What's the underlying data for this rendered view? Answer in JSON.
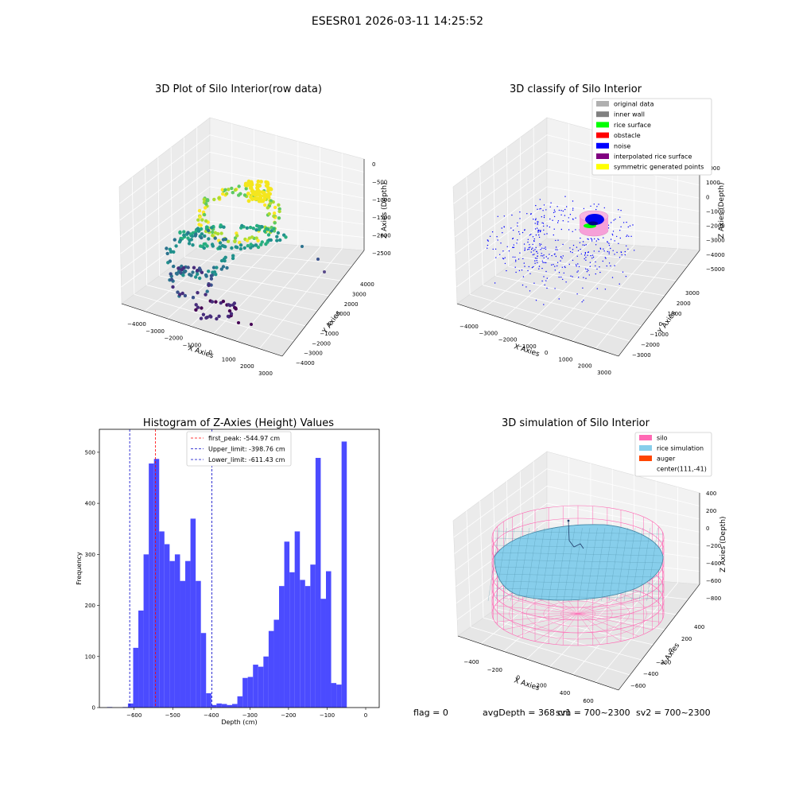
{
  "suptitle": "ESESR01 2026-03-11 14:25:52",
  "status": {
    "flag": "flag = 0",
    "avg_depth": "avgDepth = 368 cm",
    "sv1": "sv1 = 700~2300",
    "sv2": "sv2 = 700~2300"
  },
  "chart_data": [
    {
      "type": "scatter3d",
      "title": "3D Plot of Silo Interior(row data)",
      "xlabel": "X Axies",
      "ylabel": "Y Axies",
      "zlabel": "Z Axies (Depth)",
      "x_ticks": [
        "−4000",
        "−3000",
        "−2000",
        "−1000",
        "0",
        "1000",
        "2000",
        "3000"
      ],
      "y_ticks": [
        "−4000",
        "−3000",
        "−2000",
        "−1000",
        "0",
        "1000",
        "2000",
        "3000",
        "4000"
      ],
      "z_ticks": [
        "−2500",
        "−2000",
        "−1500",
        "−1000",
        "−500",
        "0"
      ],
      "xlim": [
        -4500,
        3000
      ],
      "ylim": [
        -4500,
        4500
      ],
      "zlim": [
        -2800,
        100
      ],
      "colormap": "viridis by depth"
    },
    {
      "type": "scatter3d",
      "title": "3D classify of Silo Interior",
      "xlabel": "X Axies",
      "ylabel": "Y Axies",
      "zlabel": "Z Axies (Depth)",
      "x_ticks": [
        "−4000",
        "−3000",
        "−2000",
        "−1000",
        "0",
        "1000",
        "2000",
        "3000"
      ],
      "y_ticks": [
        "−3000",
        "−2000",
        "−1000",
        "0",
        "1000",
        "2000",
        "3000"
      ],
      "z_ticks": [
        "−5000",
        "−4000",
        "−3000",
        "−2000",
        "−1000",
        "0",
        "1000",
        "2000"
      ],
      "xlim": [
        -4500,
        3000
      ],
      "ylim": [
        -3500,
        3500
      ],
      "zlim": [
        -5000,
        2000
      ],
      "legend_placement": "top-right",
      "legend": [
        {
          "label": "original data",
          "color": "#b0b0b0"
        },
        {
          "label": "inner wall",
          "color": "#808080"
        },
        {
          "label": "rice surface",
          "color": "#00ff00"
        },
        {
          "label": "obstacle",
          "color": "#ff0000"
        },
        {
          "label": "noise",
          "color": "#0000ff"
        },
        {
          "label": "interpolated rice surface",
          "color": "#800080"
        },
        {
          "label": "symmetric generated points",
          "color": "#ffff00"
        }
      ]
    },
    {
      "type": "bar",
      "title": "Histogram of Z-Axies (Height) Values",
      "xlabel": "Depth (cm)",
      "ylabel": "Frequency",
      "xlim": [
        -690,
        35
      ],
      "ylim": [
        0,
        545
      ],
      "x_ticks": [
        "−600",
        "−500",
        "−400",
        "−300",
        "−200",
        "−100",
        "0"
      ],
      "x_tick_values": [
        -600,
        -500,
        -400,
        -300,
        -200,
        -100,
        0
      ],
      "y_ticks": [
        "0",
        "100",
        "200",
        "300",
        "400",
        "500"
      ],
      "y_tick_values": [
        0,
        100,
        200,
        300,
        400,
        500
      ],
      "bar_color": "#4b4bff",
      "bins": {
        "start": -670,
        "width": 13.5,
        "values": [
          1,
          0,
          0,
          1,
          8,
          117,
          190,
          300,
          478,
          487,
          345,
          320,
          287,
          300,
          248,
          287,
          370,
          248,
          146,
          28,
          5,
          8,
          7,
          5,
          7,
          22,
          58,
          60,
          84,
          80,
          100,
          150,
          172,
          238,
          325,
          265,
          345,
          250,
          238,
          280,
          489,
          213,
          267,
          48,
          45,
          521
        ]
      },
      "lines": [
        {
          "label": "first_peak: -544.97 cm",
          "x": -544.97,
          "color": "#ff0000"
        },
        {
          "label": "Upper_limit: -398.76 cm",
          "x": -398.76,
          "color": "#0000c8"
        },
        {
          "label": "Lower_limit: -611.43 cm",
          "x": -611.43,
          "color": "#0000c8"
        }
      ],
      "legend_placement": "top-center"
    },
    {
      "type": "surface3d",
      "title": "3D simulation of Silo Interior",
      "xlabel": "X Axies",
      "ylabel": "Y Axies",
      "zlabel": "Z Axies (Depth)",
      "x_ticks": [
        "−400",
        "−200",
        "0",
        "200",
        "400",
        "600"
      ],
      "y_ticks": [
        "−600",
        "−400",
        "−200",
        "0",
        "200",
        "400"
      ],
      "z_ticks": [
        "−800",
        "−600",
        "−400",
        "−200",
        "0",
        "200",
        "400"
      ],
      "xlim": [
        -550,
        700
      ],
      "ylim": [
        -700,
        500
      ],
      "zlim": [
        -900,
        400
      ],
      "legend_placement": "top-right",
      "legend": [
        {
          "label": "silo",
          "color": "#ff69b4"
        },
        {
          "label": "rice simulation",
          "color": "#87ceeb"
        },
        {
          "label": "auger",
          "color": "#ff4500"
        },
        {
          "label": "center(111,-41)",
          "color": ""
        }
      ]
    }
  ]
}
